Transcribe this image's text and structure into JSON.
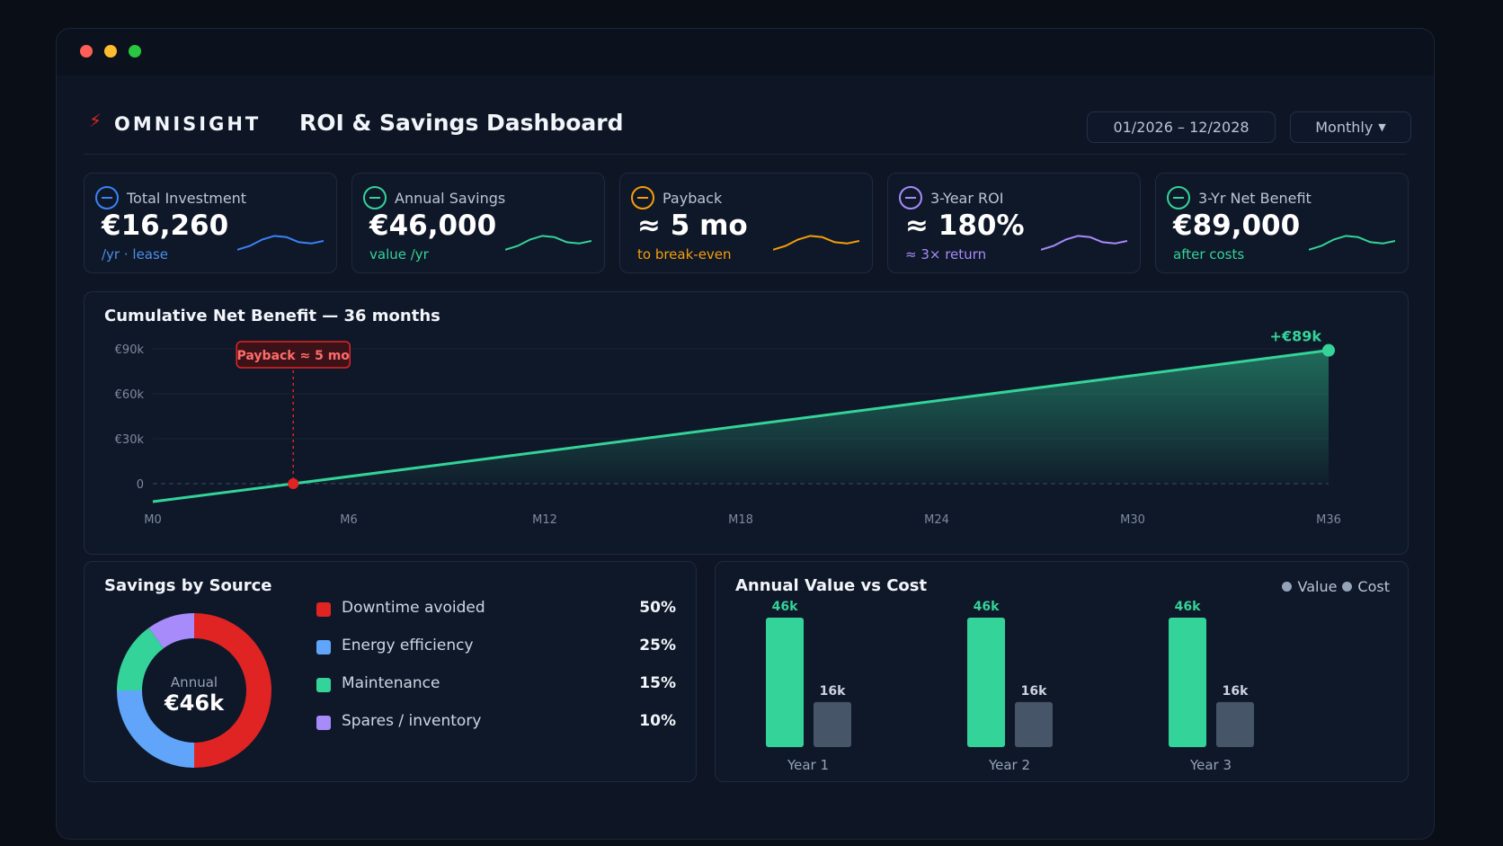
{
  "window": {
    "controls": [
      "close",
      "minimize",
      "maximize"
    ]
  },
  "header": {
    "logo_icon": "lightning-bolt-icon",
    "brand": "OMNISIGHT",
    "title": "ROI & Savings Dashboard",
    "date_range": "01/2026 – 12/2028",
    "period": "Monthly",
    "period_icon": "caret-down-icon"
  },
  "kpis": [
    {
      "label": "Total Investment",
      "value": "€16,260",
      "sub": "/yr · lease",
      "color": "#3b82f6",
      "sub_color": "#4c8fe8",
      "icon": "minus-circle-icon"
    },
    {
      "label": "Annual Savings",
      "value": "€46,000",
      "sub": "value /yr",
      "color": "#34d399",
      "sub_color": "#34d399",
      "icon": "minus-circle-icon"
    },
    {
      "label": "Payback",
      "value": "≈ 5 mo",
      "sub": "to break-even",
      "color": "#f59e0b",
      "sub_color": "#f59e0b",
      "icon": "minus-circle-icon"
    },
    {
      "label": "3-Year ROI",
      "value": "≈ 180%",
      "sub": "≈ 3× return",
      "color": "#a78bfa",
      "sub_color": "#a78bfa",
      "icon": "minus-circle-icon"
    },
    {
      "label": "3-Yr Net Benefit",
      "value": "€89,000",
      "sub": "after costs",
      "color": "#34d399",
      "sub_color": "#34d399",
      "icon": "minus-circle-icon"
    }
  ],
  "chart_data": [
    {
      "type": "area",
      "title": "Cumulative Net Benefit — 36 months",
      "x_ticks": [
        "M0",
        "M6",
        "M12",
        "M18",
        "M24",
        "M30",
        "M36"
      ],
      "y_ticks": [
        "0",
        "€30k",
        "€60k",
        "€90k"
      ],
      "ylim": [
        -15,
        95
      ],
      "xlim": [
        0,
        36
      ],
      "series": [
        {
          "x": [
            0,
            4.3,
            36
          ],
          "y": [
            -12,
            0,
            89
          ]
        }
      ],
      "annotations": {
        "payback_label": "Payback ≈ 5 mo",
        "payback_x": 4.3,
        "end_label": "+€89k"
      },
      "colors": {
        "line": "#34d399",
        "marker": "#e02424"
      }
    },
    {
      "type": "pie",
      "title": "Savings by Source",
      "center_label": "Annual",
      "center_value": "€46k",
      "categories": [
        "Downtime avoided",
        "Energy efficiency",
        "Maintenance",
        "Spares / inventory"
      ],
      "values": [
        50,
        25,
        15,
        10
      ],
      "value_labels": [
        "50%",
        "25%",
        "15%",
        "10%"
      ],
      "colors": [
        "#e02424",
        "#60a5fa",
        "#34d399",
        "#a78bfa"
      ]
    },
    {
      "type": "bar",
      "title": "Annual Value vs Cost",
      "categories": [
        "Year 1",
        "Year 2",
        "Year 3"
      ],
      "series": [
        {
          "name": "Value",
          "values": [
            46,
            46,
            46
          ],
          "labels": [
            "46k",
            "46k",
            "46k"
          ],
          "color": "#34d399"
        },
        {
          "name": "Cost",
          "values": [
            16,
            16,
            16
          ],
          "labels": [
            "16k",
            "16k",
            "16k"
          ],
          "color": "#475569"
        }
      ]
    }
  ]
}
